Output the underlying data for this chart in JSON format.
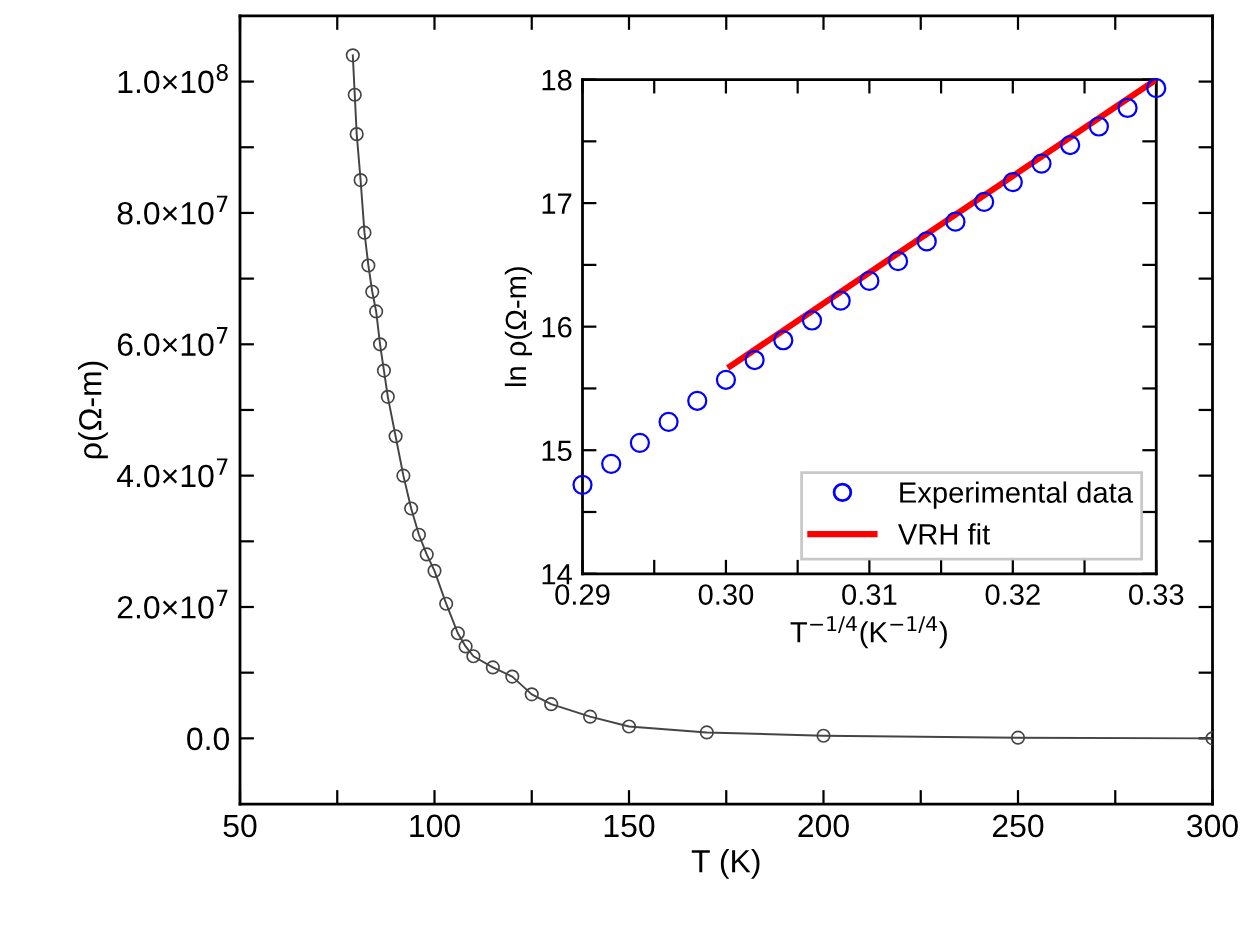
{
  "chart_data": [
    {
      "type": "line",
      "xlabel": "T (K)",
      "ylabel": "ρ(Ω-m)",
      "marker": "circle",
      "line_style": "solid",
      "grid": false,
      "legend": false,
      "xlim": [
        50,
        300
      ],
      "xticks": [
        50,
        {
          "value": 75,
          "label": null
        },
        100,
        {
          "value": 125,
          "label": null
        },
        150,
        {
          "value": 175,
          "label": null
        },
        200,
        {
          "value": 225,
          "label": null
        },
        250,
        {
          "value": 275,
          "label": null
        },
        300
      ],
      "ylim": [
        -10000000.0,
        110000000.0
      ],
      "yticks": [
        {
          "value": 0,
          "label": "0.0"
        },
        {
          "value": 10000000.0,
          "label": null
        },
        {
          "value": 20000000.0,
          "label": "2.0×10$^{7}$"
        },
        {
          "value": 30000000.0,
          "label": null
        },
        {
          "value": 40000000.0,
          "label": "4.0×10$^{7}$"
        },
        {
          "value": 50000000.0,
          "label": null
        },
        {
          "value": 60000000.0,
          "label": "6.0×10$^{7}$"
        },
        {
          "value": 70000000.0,
          "label": null
        },
        {
          "value": 80000000.0,
          "label": "8.0×10$^{7}$"
        },
        {
          "value": 90000000.0,
          "label": null
        },
        {
          "value": 100000000.0,
          "label": "1.0×10$^{8}$"
        }
      ],
      "series": [
        {
          "color": "#444444",
          "x": [
            79,
            79.5,
            80,
            81,
            82,
            83,
            84,
            85,
            86,
            87,
            88,
            90,
            92,
            94,
            96,
            98,
            100,
            103,
            106,
            108,
            110,
            115,
            120,
            125,
            130,
            140,
            150,
            170,
            200,
            250,
            300
          ],
          "values": [
            104000000.0,
            98000000.0,
            92000000.0,
            85000000.0,
            77000000.0,
            72000000.0,
            68000000.0,
            65000000.0,
            60000000.0,
            56000000.0,
            52000000.0,
            46000000.0,
            40000000.0,
            35000000.0,
            31000000.0,
            28000000.0,
            25500000.0,
            20500000.0,
            16000000.0,
            14000000.0,
            12500000.0,
            10800000.0,
            9400000.0,
            6700000.0,
            5200000.0,
            3300000.0,
            1800000.0,
            900000.0,
            400000.0,
            100000.0,
            0
          ]
        }
      ]
    },
    {
      "type": "scatter",
      "xlabel": "T$^{−1/4}$(K$^{−1/4}$)",
      "ylabel": "ln ρ(Ω-m)",
      "grid": false,
      "legend": "lower right",
      "xlim": [
        0.29,
        0.33
      ],
      "xticks": [
        {
          "value": 0.29,
          "label": "0.29"
        },
        {
          "value": 0.295,
          "label": null
        },
        {
          "value": 0.3,
          "label": "0.30"
        },
        {
          "value": 0.305,
          "label": null
        },
        {
          "value": 0.31,
          "label": "0.31"
        },
        {
          "value": 0.315,
          "label": null
        },
        {
          "value": 0.32,
          "label": "0.32"
        },
        {
          "value": 0.325,
          "label": null
        },
        {
          "value": 0.33,
          "label": "0.33"
        }
      ],
      "ylim": [
        14,
        18
      ],
      "yticks": [
        14,
        {
          "value": 14.5,
          "label": null
        },
        15,
        {
          "value": 15.5,
          "label": null
        },
        16,
        {
          "value": 16.5,
          "label": null
        },
        17,
        {
          "value": 17.5,
          "label": null
        },
        18
      ],
      "series": [
        {
          "name": "Experimental data",
          "type": "scatter",
          "marker": "circle",
          "color": "#0000ff",
          "x": [
            0.29,
            0.292,
            0.294,
            0.296,
            0.298,
            0.3,
            0.302,
            0.304,
            0.306,
            0.308,
            0.31,
            0.312,
            0.314,
            0.316,
            0.318,
            0.32,
            0.322,
            0.324,
            0.326,
            0.328,
            0.33
          ],
          "values": [
            14.72,
            14.89,
            15.06,
            15.23,
            15.4,
            15.57,
            15.73,
            15.89,
            16.05,
            16.21,
            16.37,
            16.53,
            16.69,
            16.85,
            17.01,
            17.17,
            17.32,
            17.47,
            17.62,
            17.77,
            17.93
          ]
        },
        {
          "name": "VRH fit",
          "type": "line",
          "marker": "none",
          "color": "#ff0000",
          "x": [
            0.3003,
            0.33
          ],
          "values": [
            15.68,
            18.0
          ]
        }
      ]
    }
  ]
}
